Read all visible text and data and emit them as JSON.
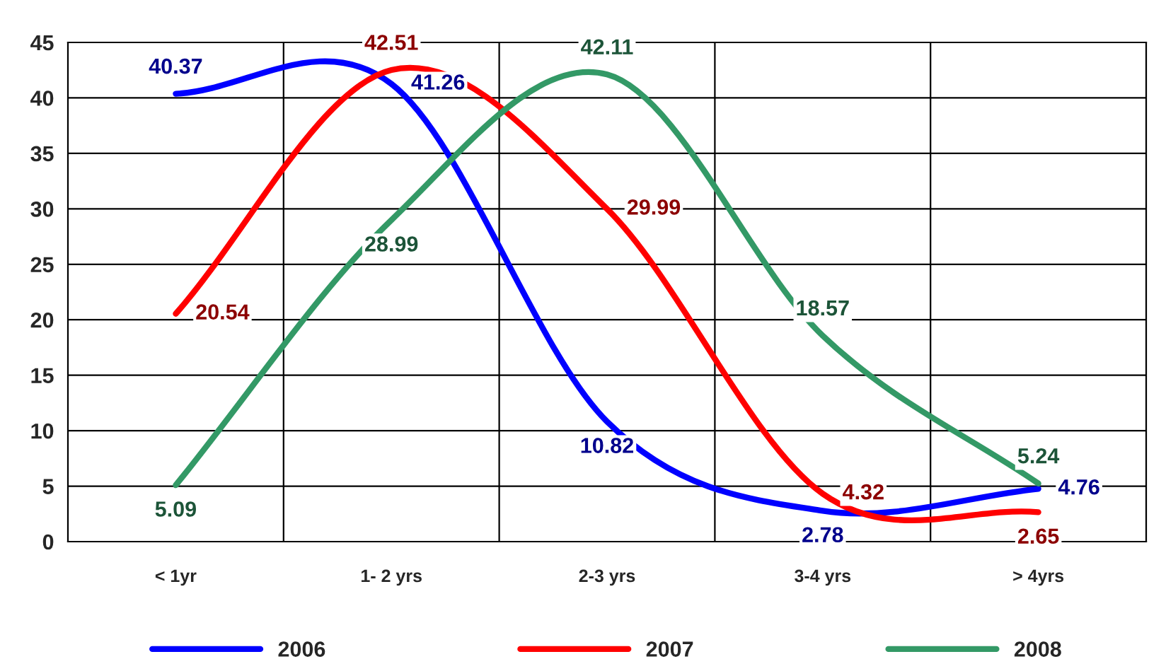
{
  "chart_data": {
    "type": "line",
    "categories": [
      "< 1yr",
      "1- 2 yrs",
      "2-3 yrs",
      "3-4 yrs",
      "> 4yrs"
    ],
    "series": [
      {
        "name": "2006",
        "color": "#0000ff",
        "values": [
          40.37,
          41.26,
          10.82,
          2.78,
          4.76
        ]
      },
      {
        "name": "2007",
        "color": "#ff0000",
        "values": [
          20.54,
          42.51,
          29.99,
          4.32,
          2.65
        ]
      },
      {
        "name": "2008",
        "color": "#339966",
        "values": [
          5.09,
          28.99,
          42.11,
          18.57,
          5.24
        ]
      }
    ],
    "ylim": [
      0,
      45
    ],
    "yticks": [
      0,
      5,
      10,
      15,
      20,
      25,
      30,
      35,
      40,
      45
    ],
    "grid": true,
    "legend": "bottom",
    "data_labels": true,
    "marker": "none",
    "line_style": "solid"
  }
}
